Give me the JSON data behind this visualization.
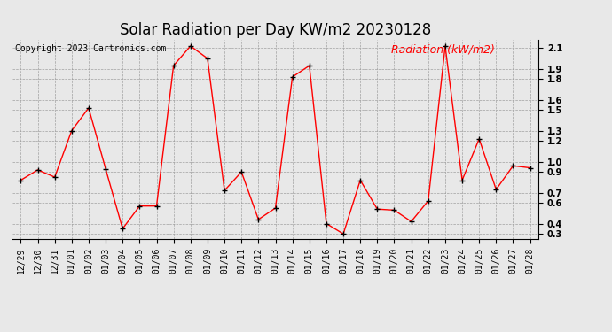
{
  "title": "Solar Radiation per Day KW/m2 20230128",
  "copyright": "Copyright 2023 Cartronics.com",
  "legend_label": "Radiation (kW/m2)",
  "x_labels": [
    "12/29",
    "12/30",
    "12/31",
    "01/01",
    "01/02",
    "01/03",
    "01/04",
    "01/05",
    "01/06",
    "01/07",
    "01/08",
    "01/09",
    "01/10",
    "01/11",
    "01/12",
    "01/13",
    "01/14",
    "01/15",
    "01/16",
    "01/17",
    "01/18",
    "01/19",
    "01/20",
    "01/21",
    "01/22",
    "01/23",
    "01/24",
    "01/25",
    "01/26",
    "01/27",
    "01/28"
  ],
  "y_values": [
    0.82,
    0.92,
    0.85,
    1.3,
    1.52,
    0.93,
    0.35,
    0.57,
    0.57,
    1.93,
    2.12,
    2.0,
    0.72,
    0.9,
    0.44,
    0.55,
    1.82,
    1.93,
    0.4,
    0.3,
    0.82,
    0.54,
    0.53,
    0.42,
    0.62,
    2.12,
    0.82,
    1.22,
    0.73,
    0.96,
    0.94
  ],
  "line_color": "red",
  "marker_color": "black",
  "ylim": [
    0.25,
    2.18
  ],
  "yticks": [
    0.3,
    0.4,
    0.6,
    0.7,
    0.9,
    1.0,
    1.2,
    1.3,
    1.5,
    1.6,
    1.8,
    1.9,
    2.1
  ],
  "background_color": "#e8e8e8",
  "grid_color": "#999999",
  "title_fontsize": 12,
  "copyright_fontsize": 7,
  "legend_fontsize": 9,
  "tick_fontsize": 7
}
